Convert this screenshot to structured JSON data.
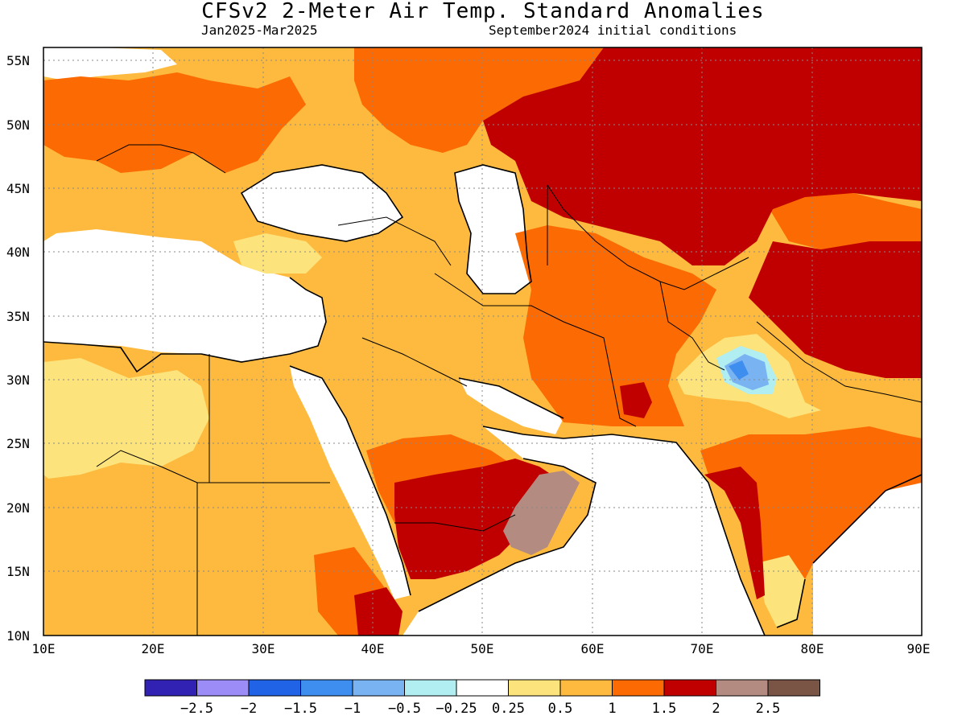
{
  "title": "CFSv2 2-Meter Air Temp. Standard Anomalies",
  "subtitle_left": "Jan2025-Mar2025",
  "subtitle_right": "September2024 initial conditions",
  "map": {
    "lon_range": [
      10,
      90
    ],
    "lat_range": [
      10,
      56
    ],
    "lon_ticks": [
      "10E",
      "20E",
      "30E",
      "40E",
      "50E",
      "60E",
      "70E",
      "80E",
      "90E"
    ],
    "lat_ticks": [
      "55N",
      "50N",
      "45N",
      "40N",
      "35N",
      "30N",
      "25N",
      "20N",
      "15N",
      "10N"
    ],
    "grid": "dotted"
  },
  "colorbar": {
    "colors": [
      "#3222b4",
      "#9b8cf7",
      "#2063e6",
      "#3e8ef0",
      "#79b3f2",
      "#b0eef2",
      "#ffffff",
      "#fde37b",
      "#fdba3e",
      "#fc6a03",
      "#c00000",
      "#b38b80",
      "#7a5444"
    ],
    "labels": [
      "-2.5",
      "-2",
      "-1.5",
      "-1",
      "-0.5",
      "-0.25",
      "0.25",
      "0.5",
      "1",
      "1.5",
      "2",
      "2.5"
    ]
  },
  "legend_colors": {
    "warm1": "#fde37b",
    "warm2": "#fdba3e",
    "warm3": "#fc6a03",
    "warm4": "#c00000",
    "warm5": "#b38b80",
    "cold1": "#b0eef2",
    "cold2": "#79b3f2",
    "cold3": "#3e8ef0"
  }
}
